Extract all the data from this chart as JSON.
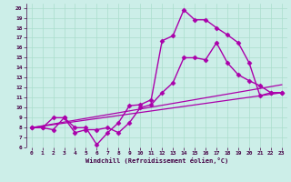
{
  "xlabel": "Windchill (Refroidissement éolien,°C)",
  "background_color": "#cceee8",
  "grid_color": "#aaddcc",
  "line_color": "#aa00aa",
  "xlim": [
    -0.5,
    23.5
  ],
  "ylim": [
    6,
    20.4
  ],
  "xticks": [
    0,
    1,
    2,
    3,
    4,
    5,
    6,
    7,
    8,
    9,
    10,
    11,
    12,
    13,
    14,
    15,
    16,
    17,
    18,
    19,
    20,
    21,
    22,
    23
  ],
  "yticks": [
    6,
    7,
    8,
    9,
    10,
    11,
    12,
    13,
    14,
    15,
    16,
    17,
    18,
    19,
    20
  ],
  "series": [
    {
      "x": [
        0,
        1,
        2,
        3,
        4,
        5,
        6,
        7,
        8,
        9,
        10,
        11,
        12,
        13,
        14,
        15,
        16,
        17,
        18,
        19,
        20,
        21,
        22,
        23
      ],
      "y": [
        8,
        8,
        9,
        9,
        8,
        8,
        6.3,
        7.5,
        8.5,
        10.2,
        10.3,
        10.8,
        16.7,
        17.2,
        19.8,
        18.8,
        18.8,
        18.0,
        17.3,
        16.5,
        14.5,
        11.2,
        11.5,
        11.5
      ],
      "marker": "D",
      "markersize": 2.5,
      "linewidth": 1.0
    },
    {
      "x": [
        0,
        1,
        2,
        3,
        4,
        5,
        6,
        7,
        8,
        9,
        10,
        11,
        12,
        13,
        14,
        15,
        16,
        17,
        18,
        19,
        20,
        21,
        22,
        23
      ],
      "y": [
        8,
        8,
        7.8,
        9.0,
        7.5,
        7.8,
        7.8,
        8,
        7.5,
        8.5,
        10.0,
        10.3,
        11.5,
        12.5,
        15.0,
        15.0,
        14.8,
        16.5,
        14.5,
        13.3,
        12.7,
        12.2,
        11.5,
        11.5
      ],
      "marker": "D",
      "markersize": 2.5,
      "linewidth": 1.0
    },
    {
      "x": [
        0,
        23
      ],
      "y": [
        8.0,
        11.5
      ],
      "marker": null,
      "linewidth": 0.9
    },
    {
      "x": [
        0,
        23
      ],
      "y": [
        8.0,
        12.3
      ],
      "marker": null,
      "linewidth": 0.9
    }
  ]
}
